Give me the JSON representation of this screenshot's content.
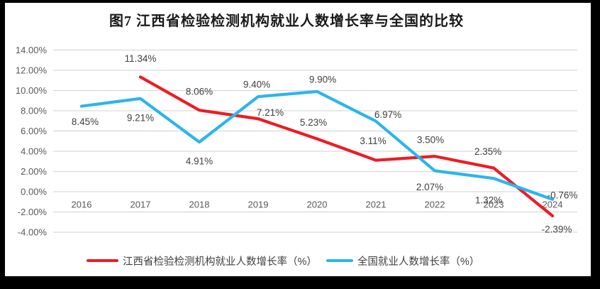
{
  "chart_data": {
    "type": "line",
    "title": "图7 江西省检验检测机构就业人数增长率与全国的比较",
    "categories": [
      "2016",
      "2017",
      "2018",
      "2019",
      "2020",
      "2021",
      "2022",
      "2023",
      "2024"
    ],
    "series": [
      {
        "name": "江西省检验检测机构就业人数增长率（%）",
        "color": "#ed1c24",
        "values": [
          null,
          11.34,
          8.06,
          7.21,
          5.23,
          3.11,
          3.5,
          2.35,
          -2.39
        ],
        "data_labels": [
          null,
          "11.34%",
          "8.06%",
          "7.21%",
          "5.23%",
          "3.11%",
          "3.50%",
          "2.35%",
          "-2.39%"
        ]
      },
      {
        "name": "全国就业人数增长率（%）",
        "color": "#2bb6e9",
        "values": [
          8.45,
          9.21,
          4.91,
          9.4,
          9.9,
          6.97,
          2.07,
          1.32,
          -0.76
        ],
        "data_labels": [
          "8.45%",
          "9.21%",
          "4.91%",
          "9.40%",
          "9.90%",
          "6.97%",
          "2.07%",
          "1.32%",
          "-0.76%"
        ]
      }
    ],
    "y_tick_labels": [
      "14.00%",
      "12.00%",
      "10.00%",
      "8.00%",
      "6.00%",
      "4.00%",
      "2.00%",
      "0.00%",
      "-2.00%",
      "-4.00%"
    ],
    "ylim": [
      -4,
      14
    ],
    "ytick_step": 2,
    "grid": true,
    "legend_position": "bottom",
    "colors": {
      "gridline": "#d9d9d9",
      "axis_text": "#595959",
      "data_label_text": "#404040",
      "frame": "#000000",
      "background": "#ffffff"
    }
  }
}
